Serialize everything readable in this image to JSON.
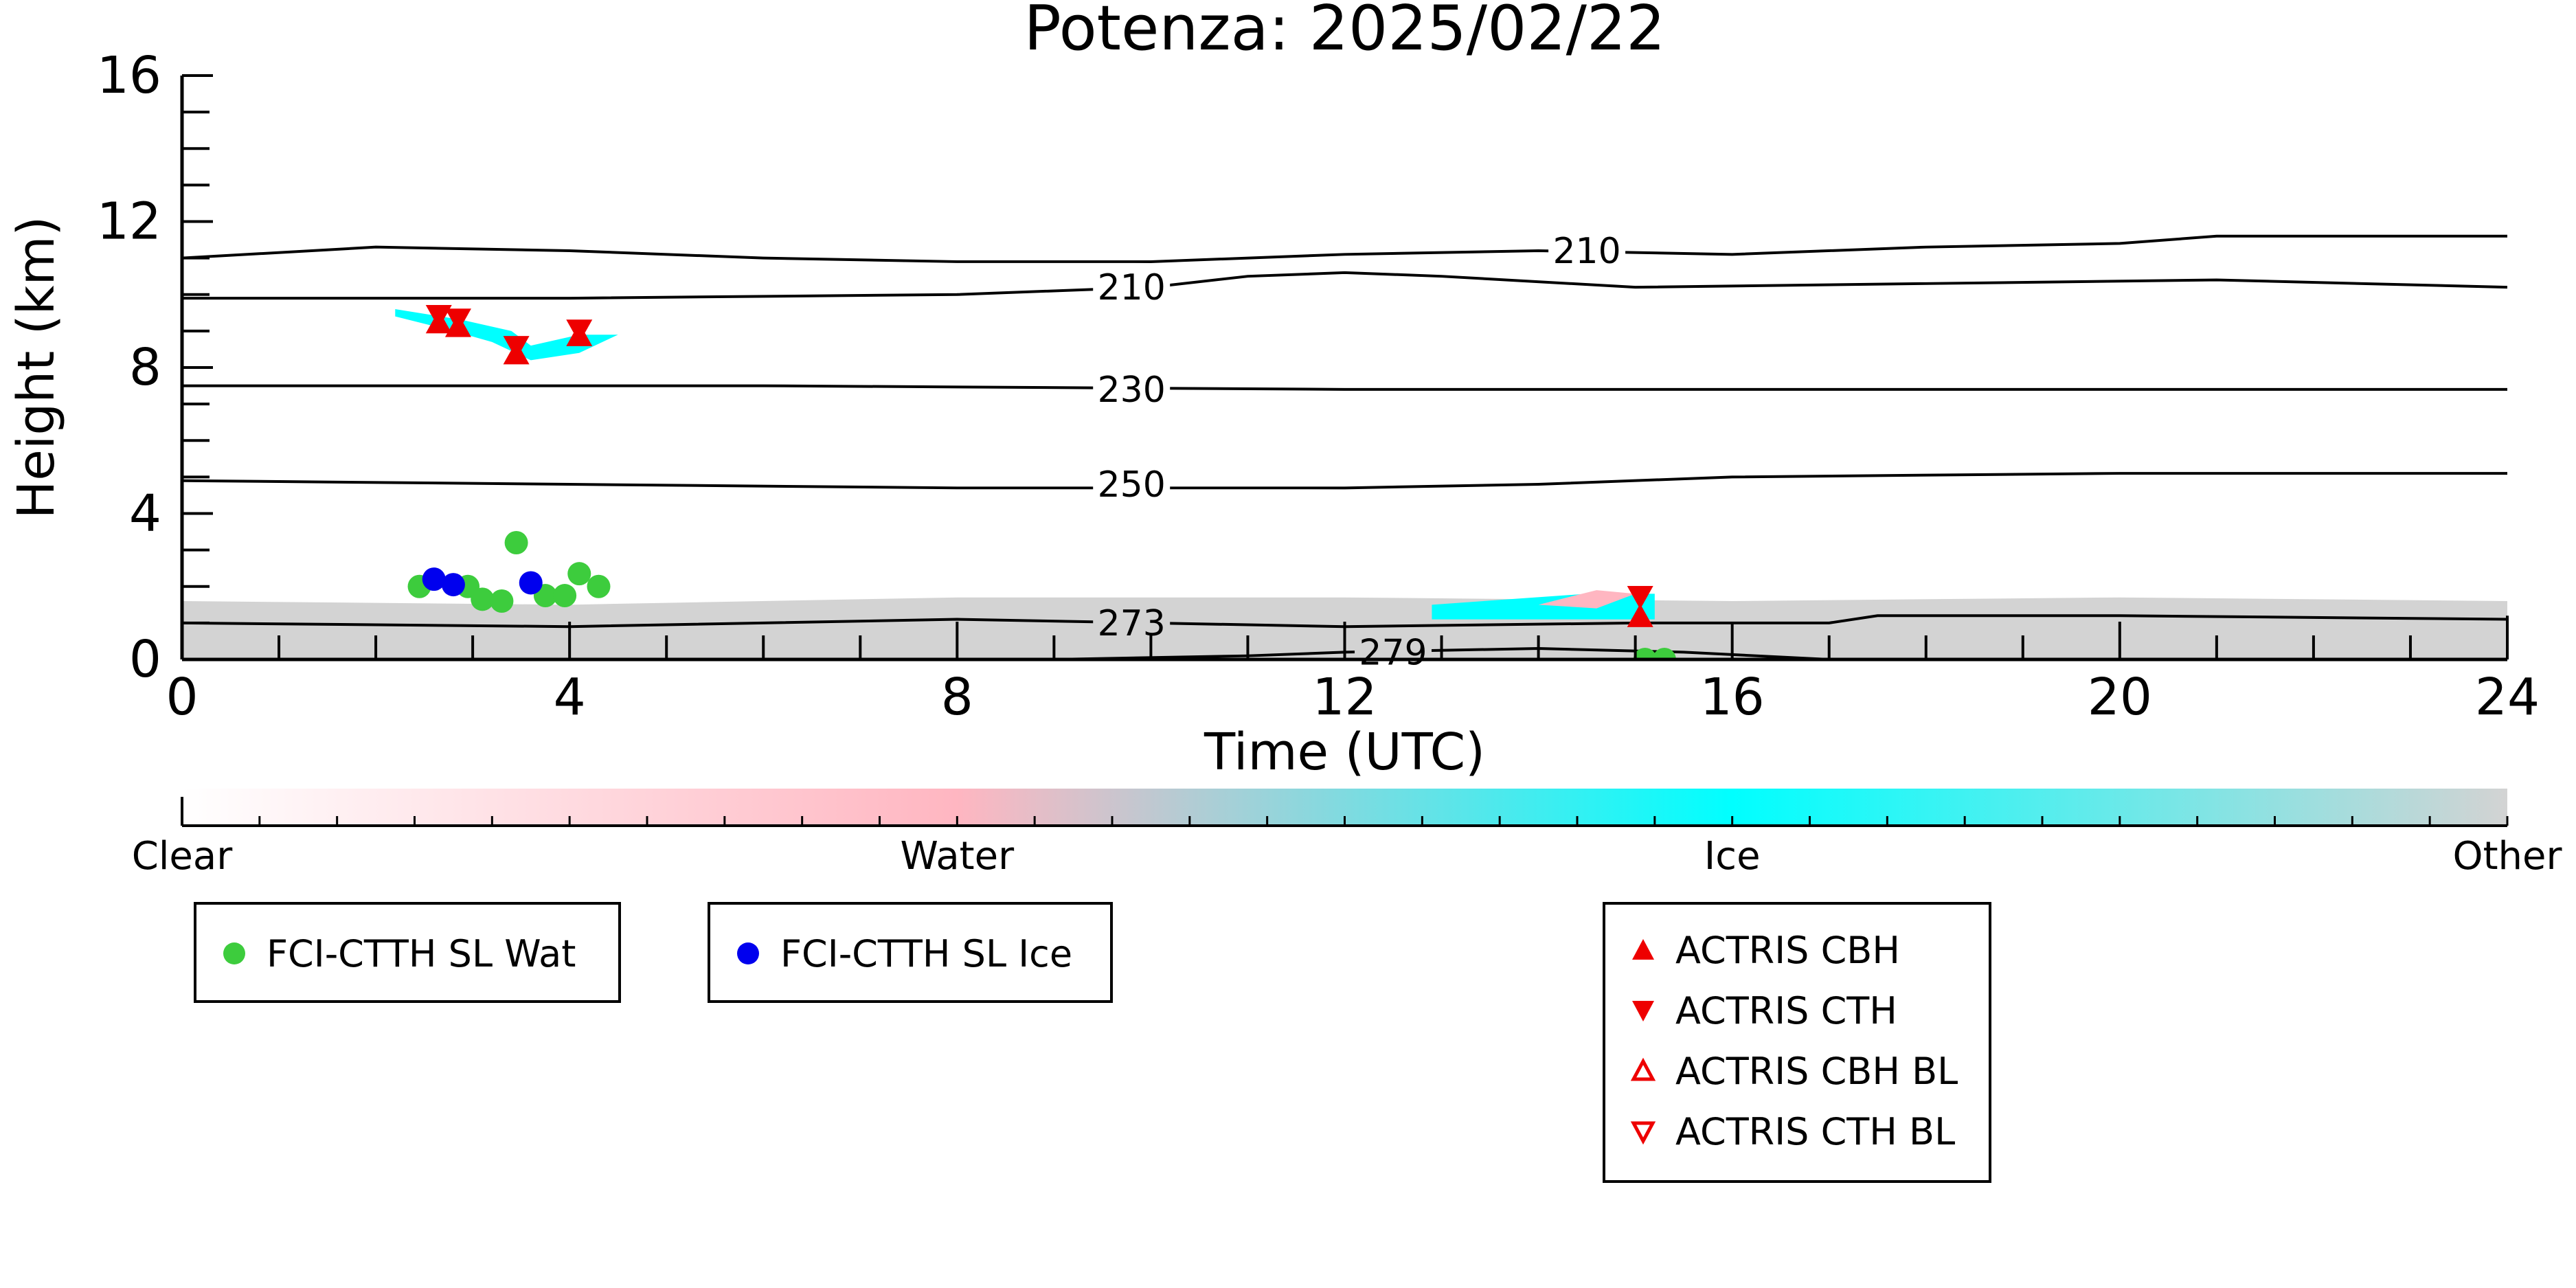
{
  "chart_data": {
    "type": "scatter",
    "title": "Potenza: 2025/02/22",
    "xlabel": "Time (UTC)",
    "ylabel": "Height (km)",
    "xlim": [
      0,
      24
    ],
    "ylim": [
      0,
      16
    ],
    "x_ticks": [
      0,
      4,
      8,
      12,
      16,
      20,
      24
    ],
    "y_ticks": [
      0,
      4,
      8,
      12,
      16
    ],
    "x_tick_labels": [
      "0",
      "4",
      "8",
      "12",
      "16",
      "20",
      "24"
    ],
    "y_tick_labels": [
      "0",
      "4",
      "8",
      "12",
      "16"
    ],
    "grid": false,
    "temperature_contours": [
      {
        "label": "210",
        "label_at": [
          14.5,
          11.2
        ],
        "points": [
          [
            0,
            11.0
          ],
          [
            2,
            11.3
          ],
          [
            4,
            11.2
          ],
          [
            6,
            11.0
          ],
          [
            8,
            10.9
          ],
          [
            10,
            10.9
          ],
          [
            12,
            11.1
          ],
          [
            14,
            11.2
          ],
          [
            16,
            11.1
          ],
          [
            18,
            11.3
          ],
          [
            20,
            11.4
          ],
          [
            21,
            11.6
          ],
          [
            24,
            11.6
          ]
        ]
      },
      {
        "label": "210",
        "label_at": [
          9.8,
          10.2
        ],
        "points": [
          [
            0,
            9.9
          ],
          [
            4,
            9.9
          ],
          [
            8,
            10.0
          ],
          [
            10,
            10.2
          ],
          [
            11,
            10.5
          ],
          [
            12,
            10.6
          ],
          [
            13,
            10.5
          ],
          [
            15,
            10.2
          ],
          [
            18,
            10.3
          ],
          [
            21,
            10.4
          ],
          [
            24,
            10.2
          ]
        ]
      },
      {
        "label": "230",
        "label_at": [
          9.8,
          7.4
        ],
        "points": [
          [
            0,
            7.5
          ],
          [
            6,
            7.5
          ],
          [
            12,
            7.4
          ],
          [
            18,
            7.4
          ],
          [
            24,
            7.4
          ]
        ]
      },
      {
        "label": "250",
        "label_at": [
          9.8,
          4.8
        ],
        "points": [
          [
            0,
            4.9
          ],
          [
            4,
            4.8
          ],
          [
            8,
            4.7
          ],
          [
            12,
            4.7
          ],
          [
            14,
            4.8
          ],
          [
            16,
            5.0
          ],
          [
            20,
            5.1
          ],
          [
            24,
            5.1
          ]
        ]
      },
      {
        "label": "273",
        "label_at": [
          9.8,
          1.0
        ],
        "points": [
          [
            0,
            1.0
          ],
          [
            4,
            0.9
          ],
          [
            8,
            1.1
          ],
          [
            10,
            1.0
          ],
          [
            12,
            0.9
          ],
          [
            15,
            1.0
          ],
          [
            17,
            1.0
          ],
          [
            17.5,
            1.2
          ],
          [
            20,
            1.2
          ],
          [
            24,
            1.1
          ]
        ]
      },
      {
        "label": "279",
        "label_at": [
          12.5,
          0.2
        ],
        "points": [
          [
            9,
            0.0
          ],
          [
            11,
            0.1
          ],
          [
            12,
            0.2
          ],
          [
            14,
            0.3
          ],
          [
            15.5,
            0.2
          ],
          [
            17,
            0.0
          ]
        ]
      }
    ],
    "classification_regions": [
      {
        "class": "Other",
        "points": [
          [
            0,
            0
          ],
          [
            0,
            1.6
          ],
          [
            4,
            1.5
          ],
          [
            8,
            1.7
          ],
          [
            12,
            1.7
          ],
          [
            16,
            1.6
          ],
          [
            20,
            1.7
          ],
          [
            24,
            1.6
          ],
          [
            24,
            0
          ]
        ]
      },
      {
        "class": "Ice",
        "points": [
          [
            2.2,
            9.6
          ],
          [
            2.9,
            9.3
          ],
          [
            3.4,
            9.0
          ],
          [
            3.6,
            8.6
          ],
          [
            4.1,
            8.9
          ],
          [
            4.5,
            8.9
          ],
          [
            4.1,
            8.4
          ],
          [
            3.6,
            8.2
          ],
          [
            3.2,
            8.7
          ],
          [
            2.8,
            9.0
          ],
          [
            2.2,
            9.4
          ]
        ]
      },
      {
        "class": "Ice",
        "points": [
          [
            12.9,
            1.5
          ],
          [
            14.5,
            1.8
          ],
          [
            15.2,
            1.8
          ],
          [
            15.2,
            1.1
          ],
          [
            14.0,
            1.1
          ],
          [
            12.9,
            1.1
          ]
        ]
      },
      {
        "class": "Water",
        "points": [
          [
            14.0,
            1.5
          ],
          [
            14.6,
            1.9
          ],
          [
            15.0,
            1.8
          ],
          [
            14.6,
            1.4
          ]
        ]
      }
    ],
    "series": [
      {
        "name": "FCI-CTTH SL Wat",
        "marker": "circle",
        "color": "#3dcc3d",
        "points": [
          [
            2.45,
            2.0
          ],
          [
            2.95,
            2.0
          ],
          [
            3.1,
            1.65
          ],
          [
            3.3,
            1.6
          ],
          [
            3.45,
            3.2
          ],
          [
            3.75,
            1.75
          ],
          [
            3.95,
            1.75
          ],
          [
            4.1,
            2.35
          ],
          [
            4.3,
            2.0
          ],
          [
            15.1,
            0.0
          ],
          [
            15.3,
            0.0
          ]
        ]
      },
      {
        "name": "FCI-CTTH SL Ice",
        "marker": "circle",
        "color": "#0000ee",
        "points": [
          [
            2.6,
            2.2
          ],
          [
            2.8,
            2.05
          ],
          [
            3.6,
            2.1
          ]
        ]
      },
      {
        "name": "ACTRIS CBH",
        "marker": "triangle-up",
        "color": "#ee0000",
        "points": [
          [
            2.65,
            9.2
          ],
          [
            2.85,
            9.1
          ],
          [
            3.45,
            8.35
          ],
          [
            4.1,
            8.85
          ],
          [
            15.05,
            1.15
          ]
        ]
      },
      {
        "name": "ACTRIS CTH",
        "marker": "triangle-down",
        "color": "#ee0000",
        "points": [
          [
            2.65,
            9.45
          ],
          [
            2.85,
            9.35
          ],
          [
            3.45,
            8.6
          ],
          [
            4.1,
            9.05
          ],
          [
            15.05,
            1.75
          ]
        ]
      },
      {
        "name": "ACTRIS CBH BL",
        "marker": "triangle-up-open",
        "color": "#ee0000",
        "points": []
      },
      {
        "name": "ACTRIS CTH BL",
        "marker": "triangle-down-open",
        "color": "#ee0000",
        "points": []
      }
    ],
    "colorbar": {
      "labels": [
        "Clear",
        "Water",
        "Ice",
        "Other"
      ],
      "colors": [
        "#ffffff",
        "#ffb6c1",
        "#00ffff",
        "#d3d3d3"
      ]
    },
    "legend_groups": [
      [
        "FCI-CTTH SL Wat"
      ],
      [
        "FCI-CTTH SL Ice"
      ],
      [
        "ACTRIS CBH",
        "ACTRIS CTH",
        "ACTRIS CBH BL",
        "ACTRIS CTH BL"
      ]
    ]
  }
}
